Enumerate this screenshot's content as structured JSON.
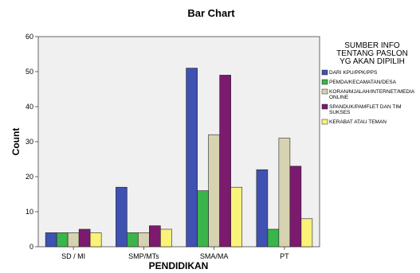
{
  "chart_data": {
    "type": "bar",
    "title": "Bar Chart",
    "xlabel": "PENDIDIKAN",
    "ylabel": "Count",
    "ylim": [
      0,
      60
    ],
    "yticks": [
      0,
      10,
      20,
      30,
      40,
      50,
      60
    ],
    "categories": [
      "SD / MI",
      "SMP/MTs",
      "SMA/MA",
      "PT"
    ],
    "legend": {
      "title_lines": [
        "SUMBER INFO",
        "TENTANG PASLON",
        "YG AKAN DIPILIH"
      ],
      "placement": "right"
    },
    "series": [
      {
        "name_lines": [
          "DARI KPU/PPK/PPS"
        ],
        "color": "#3f51b1",
        "values": [
          4,
          17,
          51,
          22
        ]
      },
      {
        "name_lines": [
          "PEMDA/KECAMATAN/DESA"
        ],
        "color": "#39b54a",
        "values": [
          4,
          4,
          16,
          5
        ]
      },
      {
        "name_lines": [
          "KORAN/MJALAH/INTERNET/MEDIA",
          "ONLINE"
        ],
        "color": "#d6d3b0",
        "values": [
          4,
          4,
          32,
          31
        ]
      },
      {
        "name_lines": [
          "SPANDUK/PAMFLET DAN TIM",
          "SUKSES"
        ],
        "color": "#7b1a6e",
        "values": [
          5,
          6,
          49,
          23
        ]
      },
      {
        "name_lines": [
          "KERABAT ATAU TEMAN"
        ],
        "color": "#fbf27a",
        "values": [
          4,
          5,
          17,
          8
        ]
      }
    ],
    "grid": false,
    "plot_background": "#f0f0f0"
  }
}
